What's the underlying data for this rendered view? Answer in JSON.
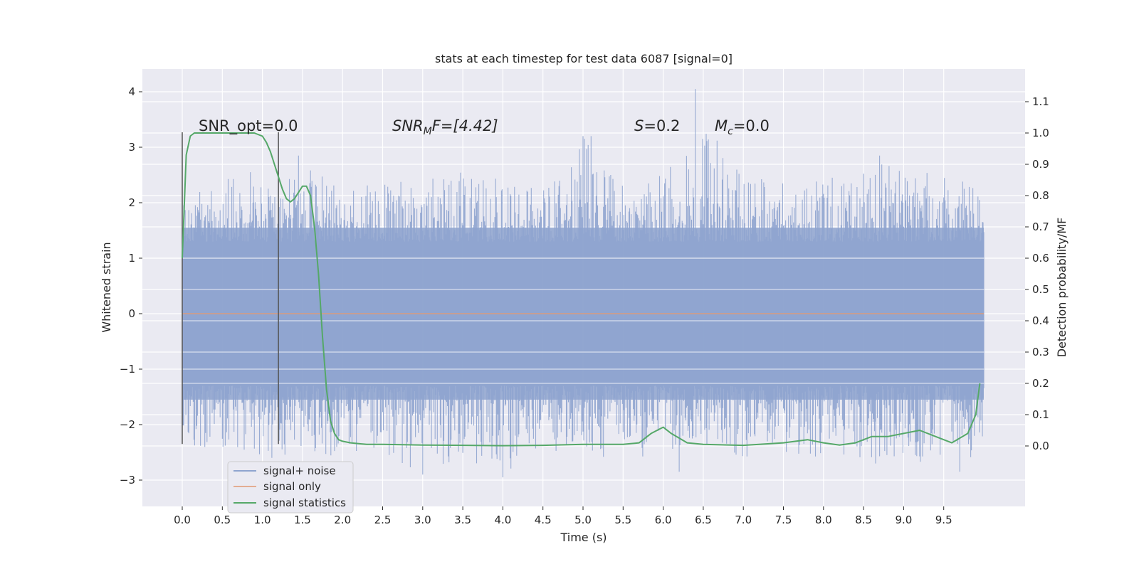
{
  "chart_data": {
    "type": "line",
    "title": "stats at each timestep for test data 6087 [signal=0]",
    "xlabel": "Time (s)",
    "ylabel": "Whitened strain",
    "ylabel_right": "Detection probability/MF",
    "xlim": [
      -0.5,
      10.5
    ],
    "ylim": [
      -3.5,
      4.35
    ],
    "ylim_right": [
      -0.2,
      1.2
    ],
    "x_ticks": [
      "0.0",
      "0.5",
      "1.0",
      "1.5",
      "2.0",
      "2.5",
      "3.0",
      "3.5",
      "4.0",
      "4.5",
      "5.0",
      "5.5",
      "6.0",
      "6.5",
      "7.0",
      "7.5",
      "8.0",
      "8.5",
      "9.0",
      "9.5"
    ],
    "y_ticks": [
      "4",
      "3",
      "2",
      "1",
      "0",
      "−1",
      "−2",
      "−3"
    ],
    "y_ticks_right": [
      "1.1",
      "1.0",
      "0.9",
      "0.8",
      "0.7",
      "0.6",
      "0.5",
      "0.4",
      "0.3",
      "0.2",
      "0.1",
      "0.0"
    ],
    "grid": true,
    "legend_position": "lower-left",
    "annotations": {
      "snr_opt": "SNR_opt=0.0",
      "snr_mf_sym": "SNR",
      "snr_mf_sub": "M",
      "snr_mf_rest": "F=[4.42]",
      "s_sym": "S",
      "s_rest": "=0.2",
      "mc_sym": "M",
      "mc_sub": "c",
      "mc_rest": "=0.0"
    },
    "window_markers": {
      "start": 0.0,
      "end": 1.2,
      "ymin": -2.35,
      "ymax": 3.27
    },
    "series": [
      {
        "name": "signal+ noise",
        "color": "#8fa4cf",
        "axis": "left",
        "x_range": [
          0.0,
          10.0
        ],
        "envelope": [
          [
            0.0,
            -2.4,
            2.0
          ],
          [
            0.5,
            -2.6,
            2.5
          ],
          [
            1.0,
            -2.6,
            2.3
          ],
          [
            1.5,
            -2.7,
            2.8
          ],
          [
            2.0,
            -2.5,
            2.3
          ],
          [
            2.5,
            -2.5,
            2.4
          ],
          [
            3.0,
            -2.9,
            2.4
          ],
          [
            3.5,
            -2.6,
            2.6
          ],
          [
            4.0,
            -2.9,
            2.4
          ],
          [
            4.5,
            -2.5,
            2.3
          ],
          [
            5.0,
            -2.6,
            3.2
          ],
          [
            5.5,
            -2.6,
            2.3
          ],
          [
            6.0,
            -2.6,
            2.5
          ],
          [
            6.4,
            -2.3,
            4.05
          ],
          [
            7.0,
            -2.6,
            2.5
          ],
          [
            7.5,
            -2.5,
            2.4
          ],
          [
            8.0,
            -2.6,
            2.4
          ],
          [
            8.5,
            -2.7,
            2.8
          ],
          [
            9.0,
            -2.6,
            2.6
          ],
          [
            9.5,
            -2.8,
            2.5
          ],
          [
            10.0,
            -2.5,
            2.3
          ]
        ],
        "peaks": [
          [
            0.85,
            2.55
          ],
          [
            1.2,
            2.45
          ],
          [
            1.45,
            2.85
          ],
          [
            5.0,
            3.2
          ],
          [
            5.1,
            3.2
          ],
          [
            6.4,
            4.05
          ],
          [
            8.7,
            2.85
          ],
          [
            3.0,
            -2.9
          ],
          [
            4.0,
            -2.95
          ],
          [
            6.2,
            -2.85
          ],
          [
            8.65,
            -2.7
          ],
          [
            9.7,
            -2.85
          ]
        ]
      },
      {
        "name": "signal only",
        "color": "#dd8452",
        "axis": "left",
        "x": [
          0.0,
          10.0
        ],
        "y": [
          0.0,
          0.0
        ]
      },
      {
        "name": "signal statistics",
        "color": "#55a868",
        "axis": "right",
        "x": [
          0.0,
          0.05,
          0.1,
          0.15,
          0.2,
          0.3,
          0.5,
          0.7,
          0.9,
          1.0,
          1.05,
          1.1,
          1.15,
          1.2,
          1.25,
          1.3,
          1.35,
          1.4,
          1.45,
          1.5,
          1.55,
          1.6,
          1.65,
          1.7,
          1.75,
          1.8,
          1.85,
          1.9,
          1.95,
          2.0,
          2.1,
          2.3,
          2.5,
          3.0,
          3.5,
          4.0,
          4.5,
          5.0,
          5.5,
          5.7,
          5.85,
          6.0,
          6.1,
          6.3,
          6.5,
          7.0,
          7.5,
          7.8,
          8.0,
          8.2,
          8.4,
          8.6,
          8.8,
          9.0,
          9.2,
          9.4,
          9.6,
          9.8,
          9.9,
          9.95
        ],
        "y": [
          0.6,
          0.93,
          0.99,
          1.0,
          1.0,
          1.0,
          1.0,
          1.0,
          1.0,
          0.99,
          0.97,
          0.94,
          0.9,
          0.86,
          0.82,
          0.79,
          0.78,
          0.79,
          0.81,
          0.83,
          0.83,
          0.8,
          0.7,
          0.55,
          0.35,
          0.18,
          0.08,
          0.04,
          0.02,
          0.015,
          0.01,
          0.005,
          0.005,
          0.003,
          0.002,
          0.001,
          0.002,
          0.005,
          0.005,
          0.01,
          0.04,
          0.06,
          0.04,
          0.01,
          0.005,
          0.002,
          0.01,
          0.02,
          0.01,
          0.003,
          0.01,
          0.03,
          0.03,
          0.04,
          0.05,
          0.03,
          0.01,
          0.04,
          0.1,
          0.2
        ]
      }
    ]
  }
}
